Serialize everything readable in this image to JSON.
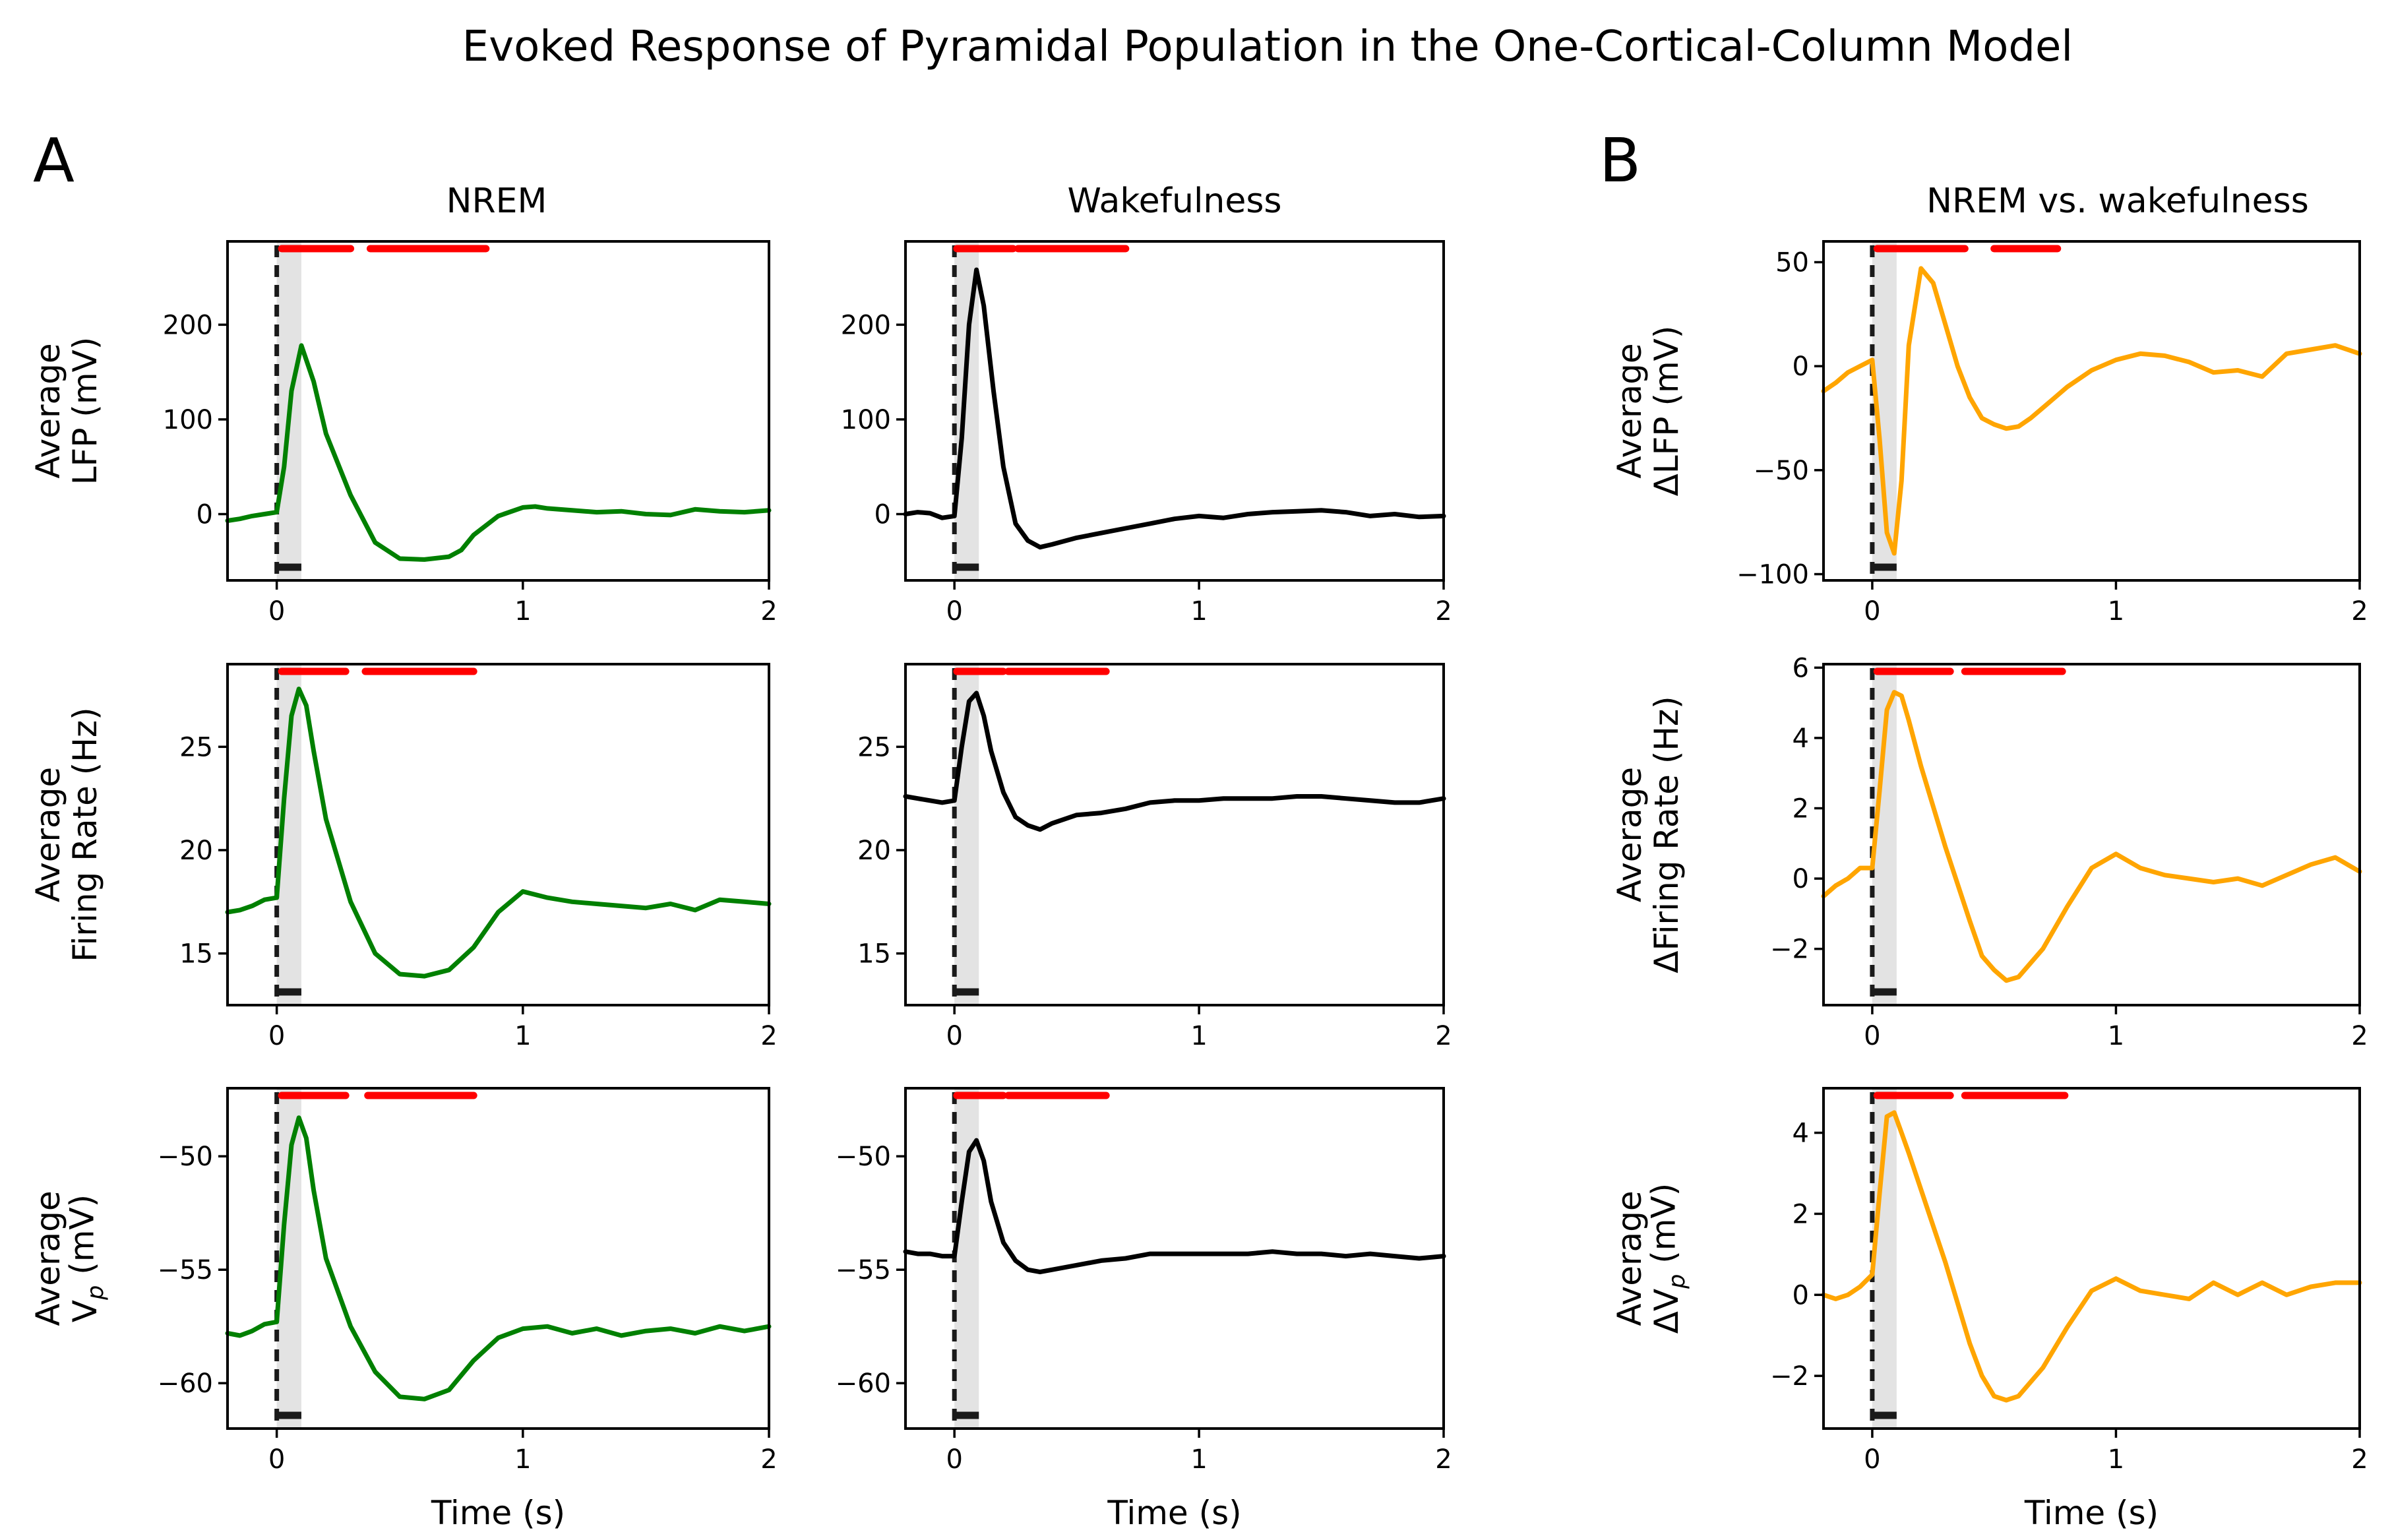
{
  "title": "Evoked Response of Pyramidal Population in the One-Cortical-Column Model",
  "panel_labels": {
    "A": "A",
    "B": "B"
  },
  "column_titles": [
    "NREM",
    "Wakefulness",
    "NREM vs. wakefulness"
  ],
  "colors": {
    "nrem": "#008000",
    "wake": "#000000",
    "diff": "#FFA500",
    "significance": "#FF0000"
  },
  "chart_data": [
    {
      "id": "lfp-nrem",
      "type": "line",
      "panel": "A",
      "column": "NREM",
      "ylabel": [
        "Average",
        "LFP (mV)"
      ],
      "xlabel": "",
      "xlim": [
        -0.2,
        2
      ],
      "ylim": [
        -70,
        288
      ],
      "xticks": [
        0,
        1,
        2
      ],
      "xticklabels": [
        "0",
        "1",
        "2"
      ],
      "yticks": [
        0,
        100,
        200
      ],
      "yticklabels": [
        "0",
        "100",
        "200"
      ],
      "color": "#008000",
      "stimulus": {
        "onset": 0,
        "duration": 0.1
      },
      "significance": [
        [
          0.02,
          0.3
        ],
        [
          0.38,
          0.85
        ]
      ],
      "series": [
        {
          "name": "NREM",
          "x": [
            -0.2,
            -0.15,
            -0.1,
            -0.05,
            0,
            0.03,
            0.06,
            0.1,
            0.15,
            0.2,
            0.3,
            0.4,
            0.5,
            0.6,
            0.7,
            0.75,
            0.8,
            0.9,
            1.0,
            1.05,
            1.1,
            1.2,
            1.3,
            1.4,
            1.5,
            1.6,
            1.7,
            1.8,
            1.9,
            2.0
          ],
          "y": [
            -7,
            -5,
            -2,
            0,
            2,
            50,
            130,
            178,
            140,
            85,
            20,
            -30,
            -47,
            -48,
            -45,
            -38,
            -22,
            -2,
            7,
            8,
            6,
            4,
            2,
            3,
            0,
            -1,
            5,
            3,
            2,
            4
          ]
        }
      ]
    },
    {
      "id": "lfp-wake",
      "type": "line",
      "panel": "A",
      "column": "Wakefulness",
      "ylabel": [],
      "xlabel": "",
      "xlim": [
        -0.2,
        2
      ],
      "ylim": [
        -70,
        288
      ],
      "xticks": [
        0,
        1,
        2
      ],
      "xticklabels": [
        "0",
        "1",
        "2"
      ],
      "yticks": [
        0,
        100,
        200
      ],
      "yticklabels": [
        "0",
        "100",
        "200"
      ],
      "color": "#000000",
      "stimulus": {
        "onset": 0,
        "duration": 0.1
      },
      "significance": [
        [
          0.01,
          0.24
        ],
        [
          0.26,
          0.7
        ]
      ],
      "series": [
        {
          "name": "Wakefulness",
          "x": [
            -0.2,
            -0.15,
            -0.1,
            -0.05,
            0,
            0.03,
            0.06,
            0.09,
            0.12,
            0.16,
            0.2,
            0.25,
            0.3,
            0.35,
            0.4,
            0.5,
            0.6,
            0.7,
            0.8,
            0.9,
            1.0,
            1.1,
            1.2,
            1.3,
            1.4,
            1.5,
            1.6,
            1.7,
            1.8,
            1.9,
            2.0
          ],
          "y": [
            0,
            2,
            1,
            -4,
            -2,
            80,
            200,
            258,
            220,
            130,
            50,
            -10,
            -28,
            -35,
            -32,
            -25,
            -20,
            -15,
            -10,
            -5,
            -2,
            -4,
            0,
            2,
            3,
            4,
            2,
            -2,
            0,
            -3,
            -2
          ]
        }
      ]
    },
    {
      "id": "lfp-diff",
      "type": "line",
      "panel": "B",
      "column": "NREM vs. wakefulness",
      "ylabel": [
        "Average",
        "ΔLFP (mV)"
      ],
      "xlabel": "",
      "xlim": [
        -0.2,
        2
      ],
      "ylim": [
        -103,
        60
      ],
      "xticks": [
        0,
        1,
        2
      ],
      "xticklabels": [
        "0",
        "1",
        "2"
      ],
      "yticks": [
        -100,
        -50,
        0,
        50
      ],
      "yticklabels": [
        "−100",
        "−50",
        "0",
        "50"
      ],
      "color": "#FFA500",
      "stimulus": {
        "onset": 0,
        "duration": 0.1
      },
      "significance": [
        [
          0.02,
          0.38
        ],
        [
          0.5,
          0.76
        ]
      ],
      "series": [
        {
          "name": "NREM − wakefulness",
          "x": [
            -0.2,
            -0.15,
            -0.1,
            -0.05,
            0,
            0.03,
            0.06,
            0.09,
            0.12,
            0.15,
            0.2,
            0.25,
            0.3,
            0.35,
            0.4,
            0.45,
            0.5,
            0.55,
            0.6,
            0.65,
            0.7,
            0.75,
            0.8,
            0.9,
            1.0,
            1.1,
            1.2,
            1.3,
            1.4,
            1.5,
            1.6,
            1.7,
            1.8,
            1.9,
            2.0
          ],
          "y": [
            -12,
            -8,
            -3,
            0,
            3,
            -35,
            -80,
            -90,
            -55,
            10,
            47,
            40,
            20,
            0,
            -15,
            -25,
            -28,
            -30,
            -29,
            -25,
            -20,
            -15,
            -10,
            -2,
            3,
            6,
            5,
            2,
            -3,
            -2,
            -5,
            6,
            8,
            10,
            6
          ]
        }
      ]
    },
    {
      "id": "fr-nrem",
      "type": "line",
      "panel": "A",
      "column": "NREM",
      "ylabel": [
        "Average",
        "Firing Rate (Hz)"
      ],
      "xlabel": "",
      "xlim": [
        -0.2,
        2
      ],
      "ylim": [
        12.5,
        29
      ],
      "xticks": [
        0,
        1,
        2
      ],
      "xticklabels": [
        "0",
        "1",
        "2"
      ],
      "yticks": [
        15,
        20,
        25
      ],
      "yticklabels": [
        "15",
        "20",
        "25"
      ],
      "color": "#008000",
      "stimulus": {
        "onset": 0,
        "duration": 0.1
      },
      "significance": [
        [
          0.02,
          0.28
        ],
        [
          0.36,
          0.8
        ]
      ],
      "series": [
        {
          "name": "NREM",
          "x": [
            -0.2,
            -0.15,
            -0.1,
            -0.05,
            0,
            0.03,
            0.06,
            0.09,
            0.12,
            0.15,
            0.2,
            0.3,
            0.4,
            0.5,
            0.6,
            0.7,
            0.8,
            0.9,
            1.0,
            1.1,
            1.2,
            1.3,
            1.4,
            1.5,
            1.6,
            1.7,
            1.8,
            1.9,
            2.0
          ],
          "y": [
            17.0,
            17.1,
            17.3,
            17.6,
            17.7,
            22.5,
            26.5,
            27.8,
            27.0,
            24.8,
            21.5,
            17.5,
            15.0,
            14.0,
            13.9,
            14.2,
            15.3,
            17.0,
            18.0,
            17.7,
            17.5,
            17.4,
            17.3,
            17.2,
            17.4,
            17.1,
            17.6,
            17.5,
            17.4
          ]
        }
      ]
    },
    {
      "id": "fr-wake",
      "type": "line",
      "panel": "A",
      "column": "Wakefulness",
      "ylabel": [],
      "xlabel": "",
      "xlim": [
        -0.2,
        2
      ],
      "ylim": [
        12.5,
        29
      ],
      "xticks": [
        0,
        1,
        2
      ],
      "xticklabels": [
        "0",
        "1",
        "2"
      ],
      "yticks": [
        15,
        20,
        25
      ],
      "yticklabels": [
        "15",
        "20",
        "25"
      ],
      "color": "#000000",
      "stimulus": {
        "onset": 0,
        "duration": 0.1
      },
      "significance": [
        [
          0.01,
          0.2
        ],
        [
          0.22,
          0.62
        ]
      ],
      "series": [
        {
          "name": "Wakefulness",
          "x": [
            -0.2,
            -0.15,
            -0.1,
            -0.05,
            0,
            0.03,
            0.06,
            0.09,
            0.12,
            0.15,
            0.2,
            0.25,
            0.3,
            0.35,
            0.4,
            0.5,
            0.6,
            0.7,
            0.8,
            0.9,
            1.0,
            1.1,
            1.2,
            1.3,
            1.4,
            1.5,
            1.6,
            1.7,
            1.8,
            1.9,
            2.0
          ],
          "y": [
            22.6,
            22.5,
            22.4,
            22.3,
            22.4,
            25.0,
            27.2,
            27.6,
            26.5,
            24.8,
            22.8,
            21.6,
            21.2,
            21.0,
            21.3,
            21.7,
            21.8,
            22.0,
            22.3,
            22.4,
            22.4,
            22.5,
            22.5,
            22.5,
            22.6,
            22.6,
            22.5,
            22.4,
            22.3,
            22.3,
            22.5
          ]
        }
      ]
    },
    {
      "id": "fr-diff",
      "type": "line",
      "panel": "B",
      "column": "NREM vs. wakefulness",
      "ylabel": [
        "Average",
        "ΔFiring Rate (Hz)"
      ],
      "xlabel": "",
      "xlim": [
        -0.2,
        2
      ],
      "ylim": [
        -3.6,
        6.1
      ],
      "xticks": [
        0,
        1,
        2
      ],
      "xticklabels": [
        "0",
        "1",
        "2"
      ],
      "yticks": [
        -2,
        0,
        2,
        4,
        6
      ],
      "yticklabels": [
        "−2",
        "0",
        "2",
        "4",
        "6"
      ],
      "color": "#FFA500",
      "stimulus": {
        "onset": 0,
        "duration": 0.1
      },
      "significance": [
        [
          0.02,
          0.32
        ],
        [
          0.38,
          0.78
        ]
      ],
      "series": [
        {
          "name": "NREM − wakefulness",
          "x": [
            -0.2,
            -0.15,
            -0.1,
            -0.05,
            0,
            0.03,
            0.06,
            0.09,
            0.12,
            0.15,
            0.2,
            0.3,
            0.4,
            0.45,
            0.5,
            0.55,
            0.6,
            0.7,
            0.8,
            0.9,
            1.0,
            1.1,
            1.2,
            1.3,
            1.4,
            1.5,
            1.6,
            1.7,
            1.8,
            1.9,
            2.0
          ],
          "y": [
            -0.5,
            -0.2,
            0.0,
            0.3,
            0.3,
            2.5,
            4.8,
            5.3,
            5.2,
            4.5,
            3.2,
            0.9,
            -1.2,
            -2.2,
            -2.6,
            -2.9,
            -2.8,
            -2.0,
            -0.8,
            0.3,
            0.7,
            0.3,
            0.1,
            0.0,
            -0.1,
            0.0,
            -0.2,
            0.1,
            0.4,
            0.6,
            0.2
          ]
        }
      ]
    },
    {
      "id": "vp-nrem",
      "type": "line",
      "panel": "A",
      "column": "NREM",
      "ylabel": [
        "Average",
        "V_p (mV)"
      ],
      "xlabel": "Time (s)",
      "xlim": [
        -0.2,
        2
      ],
      "ylim": [
        -62,
        -47
      ],
      "xticks": [
        0,
        1,
        2
      ],
      "xticklabels": [
        "0",
        "1",
        "2"
      ],
      "yticks": [
        -60,
        -55,
        -50
      ],
      "yticklabels": [
        "−60",
        "−55",
        "−50"
      ],
      "color": "#008000",
      "stimulus": {
        "onset": 0,
        "duration": 0.1
      },
      "significance": [
        [
          0.02,
          0.28
        ],
        [
          0.37,
          0.8
        ]
      ],
      "series": [
        {
          "name": "NREM",
          "x": [
            -0.2,
            -0.15,
            -0.1,
            -0.05,
            0,
            0.03,
            0.06,
            0.09,
            0.12,
            0.15,
            0.2,
            0.3,
            0.4,
            0.5,
            0.6,
            0.7,
            0.8,
            0.9,
            1.0,
            1.1,
            1.2,
            1.3,
            1.4,
            1.5,
            1.6,
            1.7,
            1.8,
            1.9,
            2.0
          ],
          "y": [
            -57.8,
            -57.9,
            -57.7,
            -57.4,
            -57.3,
            -53.0,
            -49.5,
            -48.3,
            -49.2,
            -51.5,
            -54.5,
            -57.5,
            -59.5,
            -60.6,
            -60.7,
            -60.3,
            -59.0,
            -58.0,
            -57.6,
            -57.5,
            -57.8,
            -57.6,
            -57.9,
            -57.7,
            -57.6,
            -57.8,
            -57.5,
            -57.7,
            -57.5
          ]
        }
      ]
    },
    {
      "id": "vp-wake",
      "type": "line",
      "panel": "A",
      "column": "Wakefulness",
      "ylabel": [],
      "xlabel": "Time (s)",
      "xlim": [
        -0.2,
        2
      ],
      "ylim": [
        -62,
        -47
      ],
      "xticks": [
        0,
        1,
        2
      ],
      "xticklabels": [
        "0",
        "1",
        "2"
      ],
      "yticks": [
        -60,
        -55,
        -50
      ],
      "yticklabels": [
        "−60",
        "−55",
        "−50"
      ],
      "color": "#000000",
      "stimulus": {
        "onset": 0,
        "duration": 0.1
      },
      "significance": [
        [
          0.01,
          0.2
        ],
        [
          0.22,
          0.62
        ]
      ],
      "series": [
        {
          "name": "Wakefulness",
          "x": [
            -0.2,
            -0.15,
            -0.1,
            -0.05,
            0,
            0.03,
            0.06,
            0.09,
            0.12,
            0.15,
            0.2,
            0.25,
            0.3,
            0.35,
            0.4,
            0.5,
            0.6,
            0.7,
            0.8,
            0.9,
            1.0,
            1.1,
            1.2,
            1.3,
            1.4,
            1.5,
            1.6,
            1.7,
            1.8,
            1.9,
            2.0
          ],
          "y": [
            -54.2,
            -54.3,
            -54.3,
            -54.4,
            -54.4,
            -52.0,
            -49.8,
            -49.3,
            -50.2,
            -52.0,
            -53.8,
            -54.6,
            -55.0,
            -55.1,
            -55.0,
            -54.8,
            -54.6,
            -54.5,
            -54.3,
            -54.3,
            -54.3,
            -54.3,
            -54.3,
            -54.2,
            -54.3,
            -54.3,
            -54.4,
            -54.3,
            -54.4,
            -54.5,
            -54.4
          ]
        }
      ]
    },
    {
      "id": "vp-diff",
      "type": "line",
      "panel": "B",
      "column": "NREM vs. wakefulness",
      "ylabel": [
        "Average",
        "ΔV_p (mV)"
      ],
      "xlabel": "Time (s)",
      "xlim": [
        -0.2,
        2
      ],
      "ylim": [
        -3.3,
        5.1
      ],
      "xticks": [
        0,
        1,
        2
      ],
      "xticklabels": [
        "0",
        "1",
        "2"
      ],
      "yticks": [
        -2,
        0,
        2,
        4
      ],
      "yticklabels": [
        "−2",
        "0",
        "2",
        "4"
      ],
      "color": "#FFA500",
      "stimulus": {
        "onset": 0,
        "duration": 0.1
      },
      "significance": [
        [
          0.02,
          0.32
        ],
        [
          0.38,
          0.79
        ]
      ],
      "series": [
        {
          "name": "NREM − wakefulness",
          "x": [
            -0.2,
            -0.15,
            -0.1,
            -0.05,
            0,
            0.03,
            0.06,
            0.09,
            0.12,
            0.15,
            0.2,
            0.3,
            0.4,
            0.45,
            0.5,
            0.55,
            0.6,
            0.7,
            0.8,
            0.9,
            1.0,
            1.1,
            1.2,
            1.3,
            1.4,
            1.5,
            1.6,
            1.7,
            1.8,
            1.9,
            2.0
          ],
          "y": [
            0.0,
            -0.1,
            0.0,
            0.2,
            0.5,
            2.5,
            4.4,
            4.5,
            4.0,
            3.5,
            2.6,
            0.8,
            -1.2,
            -2.0,
            -2.5,
            -2.6,
            -2.5,
            -1.8,
            -0.8,
            0.1,
            0.4,
            0.1,
            0.0,
            -0.1,
            0.3,
            0.0,
            0.3,
            0.0,
            0.2,
            0.3,
            0.3
          ]
        }
      ]
    }
  ]
}
